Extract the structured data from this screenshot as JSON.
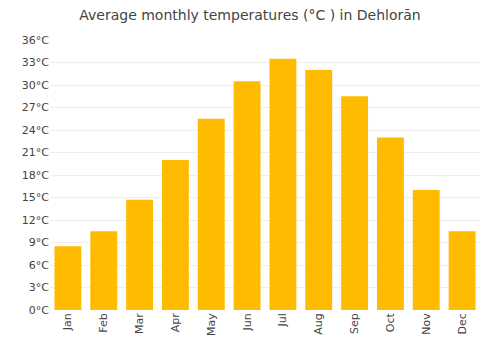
{
  "chart_data": {
    "type": "bar",
    "title": "Average monthly temperatures (°C ) in Dehlorān",
    "categories": [
      "Jan",
      "Feb",
      "Mar",
      "Apr",
      "May",
      "Jun",
      "Jul",
      "Aug",
      "Sep",
      "Oct",
      "Nov",
      "Dec"
    ],
    "values": [
      8.5,
      10.5,
      14.7,
      20.0,
      25.5,
      30.5,
      33.5,
      32.0,
      28.5,
      23.0,
      16.0,
      10.5
    ],
    "color": "#FFBB00",
    "ylim": [
      0,
      36
    ],
    "yticks": [
      {
        "value": 0,
        "label": "0°C"
      },
      {
        "value": 3,
        "label": "3°C"
      },
      {
        "value": 6,
        "label": "6°C"
      },
      {
        "value": 9,
        "label": "9°C"
      },
      {
        "value": 12,
        "label": "12°C"
      },
      {
        "value": 15,
        "label": "15°C"
      },
      {
        "value": 18,
        "label": "18°C"
      },
      {
        "value": 21,
        "label": "21°C"
      },
      {
        "value": 24,
        "label": "24°C"
      },
      {
        "value": 27,
        "label": "27°C"
      },
      {
        "value": 30,
        "label": "30°C"
      },
      {
        "value": 33,
        "label": "33°C"
      },
      {
        "value": 36,
        "label": "36°C"
      }
    ],
    "grid": true
  }
}
